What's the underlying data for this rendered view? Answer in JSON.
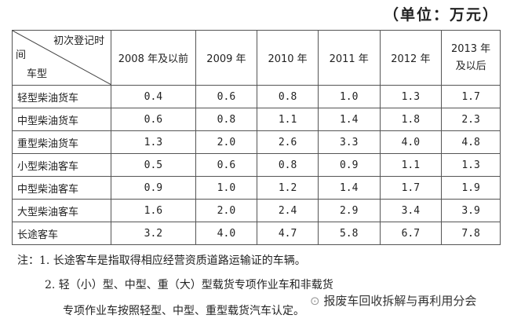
{
  "unit": "（单位：万元）",
  "corner": {
    "top": "初次登记时",
    "mid": "间",
    "bottom": "车型"
  },
  "columns": [
    "2008 年及以前",
    "2009 年",
    "2010 年",
    "2011 年",
    "2012 年",
    "2013 年及以后"
  ],
  "rows": [
    {
      "name": "轻型柴油货车",
      "values": [
        "0.4",
        "0.6",
        "0.8",
        "1.0",
        "1.3",
        "1.7"
      ]
    },
    {
      "name": "中型柴油货车",
      "values": [
        "0.6",
        "0.8",
        "1.1",
        "1.4",
        "1.8",
        "2.3"
      ]
    },
    {
      "name": "重型柴油货车",
      "values": [
        "1.3",
        "2.0",
        "2.6",
        "3.3",
        "4.0",
        "4.8"
      ]
    },
    {
      "name": "小型柴油客车",
      "values": [
        "0.5",
        "0.6",
        "0.8",
        "0.9",
        "1.1",
        "1.3"
      ]
    },
    {
      "name": "中型柴油客车",
      "values": [
        "0.9",
        "1.0",
        "1.2",
        "1.4",
        "1.7",
        "1.9"
      ]
    },
    {
      "name": "大型柴油客车",
      "values": [
        "1.6",
        "2.0",
        "2.4",
        "2.9",
        "3.4",
        "3.9"
      ]
    },
    {
      "name": "长途客车",
      "values": [
        "3.2",
        "4.0",
        "4.7",
        "5.8",
        "6.7",
        "7.8"
      ]
    }
  ],
  "notes": {
    "n1": "注：1. 长途客车是指取得相应经营资质道路运输证的车辆。",
    "n2a": "2. 轻（小）型、中型、重（大）型载货专项作业车和非载货",
    "n2b": "专项作业车按照轻型、中型、重型载货汽车认定。"
  },
  "watermark": "报废车回收拆解与再利用分会"
}
